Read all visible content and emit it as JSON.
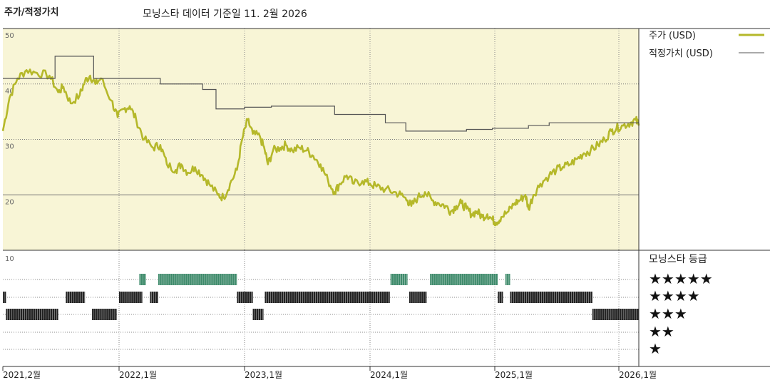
{
  "chart_data": {
    "type": "line",
    "title": "주가/적정가치",
    "subtitle": "모닝스타 데이터 기준일 11. 2월 2026",
    "x_tick_labels": [
      "2021,2월",
      "2022,1월",
      "2023,1월",
      "2024,1월",
      "2025,1월",
      "2026,1월"
    ],
    "x_ticks": [
      "2021-02",
      "2022-01",
      "2023-01",
      "2024-01",
      "2025-01",
      "2026-01"
    ],
    "x_range": [
      "2021-02",
      "2026-02"
    ],
    "price_panel": {
      "ylim": [
        10,
        50
      ],
      "y_tick_labels": [
        "50",
        "40",
        "30",
        "20"
      ],
      "grid": true,
      "legend": "right",
      "series": [
        {
          "name": "주가 (USD)",
          "color": "#b5b82a",
          "points": [
            [
              "2021-02-01",
              31.5
            ],
            [
              "2021-02-20",
              37.5
            ],
            [
              "2021-03-15",
              41.0
            ],
            [
              "2021-04-10",
              42.5
            ],
            [
              "2021-05-10",
              42.0
            ],
            [
              "2021-06-15",
              41.5
            ],
            [
              "2021-07-10",
              38.5
            ],
            [
              "2021-07-25",
              39.5
            ],
            [
              "2021-08-15",
              36.5
            ],
            [
              "2021-09-10",
              38.0
            ],
            [
              "2021-09-25",
              40.5
            ],
            [
              "2021-10-10",
              41.5
            ],
            [
              "2021-10-25",
              40.0
            ],
            [
              "2021-11-10",
              41.0
            ],
            [
              "2021-12-10",
              37.0
            ],
            [
              "2021-12-28",
              34.0
            ],
            [
              "2022-01-15",
              35.5
            ],
            [
              "2022-02-01",
              36.0
            ],
            [
              "2022-02-20",
              33.5
            ],
            [
              "2022-03-15",
              30.0
            ],
            [
              "2022-04-10",
              28.5
            ],
            [
              "2022-05-01",
              29.0
            ],
            [
              "2022-05-20",
              25.5
            ],
            [
              "2022-06-15",
              24.5
            ],
            [
              "2022-07-01",
              25.5
            ],
            [
              "2022-07-20",
              24.0
            ],
            [
              "2022-08-10",
              25.0
            ],
            [
              "2022-09-01",
              23.5
            ],
            [
              "2022-09-20",
              22.0
            ],
            [
              "2022-10-15",
              20.0
            ],
            [
              "2022-11-01",
              19.5
            ],
            [
              "2022-11-20",
              22.0
            ],
            [
              "2022-12-10",
              24.5
            ],
            [
              "2022-12-25",
              30.0
            ],
            [
              "2023-01-10",
              33.5
            ],
            [
              "2023-01-25",
              31.0
            ],
            [
              "2023-02-15",
              30.5
            ],
            [
              "2023-03-01",
              28.0
            ],
            [
              "2023-03-10",
              25.5
            ],
            [
              "2023-03-25",
              28.0
            ],
            [
              "2023-04-15",
              28.5
            ],
            [
              "2023-05-01",
              29.0
            ],
            [
              "2023-05-20",
              28.0
            ],
            [
              "2023-06-10",
              28.5
            ],
            [
              "2023-07-01",
              28.0
            ],
            [
              "2023-07-20",
              27.0
            ],
            [
              "2023-08-10",
              25.5
            ],
            [
              "2023-09-01",
              22.5
            ],
            [
              "2023-09-20",
              20.5
            ],
            [
              "2023-10-05",
              22.0
            ],
            [
              "2023-10-25",
              23.5
            ],
            [
              "2023-11-15",
              22.0
            ],
            [
              "2023-12-10",
              22.5
            ],
            [
              "2024-01-01",
              22.0
            ],
            [
              "2024-01-20",
              21.5
            ],
            [
              "2024-02-15",
              21.0
            ],
            [
              "2024-03-10",
              20.5
            ],
            [
              "2024-04-01",
              20.0
            ],
            [
              "2024-04-20",
              19.0
            ],
            [
              "2024-05-01",
              18.0
            ],
            [
              "2024-05-20",
              19.5
            ],
            [
              "2024-06-10",
              20.5
            ],
            [
              "2024-07-01",
              19.0
            ],
            [
              "2024-07-20",
              18.5
            ],
            [
              "2024-08-10",
              18.0
            ],
            [
              "2024-08-25",
              17.0
            ],
            [
              "2024-09-10",
              18.0
            ],
            [
              "2024-09-25",
              18.5
            ],
            [
              "2024-10-10",
              17.5
            ],
            [
              "2024-10-25",
              16.5
            ],
            [
              "2024-11-10",
              17.0
            ],
            [
              "2024-11-25",
              16.0
            ],
            [
              "2024-12-10",
              16.5
            ],
            [
              "2024-12-25",
              15.5
            ],
            [
              "2025-01-05",
              15.0
            ],
            [
              "2025-01-20",
              16.0
            ],
            [
              "2025-02-10",
              17.0
            ],
            [
              "2025-03-01",
              18.5
            ],
            [
              "2025-03-15",
              19.0
            ],
            [
              "2025-04-01",
              20.0
            ],
            [
              "2025-04-10",
              17.5
            ],
            [
              "2025-04-25",
              20.0
            ],
            [
              "2025-05-15",
              22.0
            ],
            [
              "2025-06-10",
              23.5
            ],
            [
              "2025-07-01",
              24.5
            ],
            [
              "2025-07-20",
              25.0
            ],
            [
              "2025-08-10",
              25.5
            ],
            [
              "2025-09-01",
              26.5
            ],
            [
              "2025-09-20",
              27.5
            ],
            [
              "2025-10-10",
              28.0
            ],
            [
              "2025-11-01",
              29.0
            ],
            [
              "2025-11-20",
              30.0
            ],
            [
              "2025-12-10",
              31.5
            ],
            [
              "2025-12-25",
              32.0
            ],
            [
              "2026-01-10",
              32.5
            ],
            [
              "2026-01-25",
              33.0
            ],
            [
              "2026-02-05",
              33.5
            ],
            [
              "2026-02-11",
              32.5
            ]
          ]
        },
        {
          "name": "적정가치 (USD)",
          "color": "#555555",
          "step": true,
          "points": [
            [
              "2021-02-01",
              41.0
            ],
            [
              "2021-07-01",
              45.0
            ],
            [
              "2021-10-20",
              41.0
            ],
            [
              "2022-05-01",
              40.0
            ],
            [
              "2022-09-01",
              39.0
            ],
            [
              "2022-10-10",
              35.5
            ],
            [
              "2023-01-01",
              35.8
            ],
            [
              "2023-03-20",
              36.0
            ],
            [
              "2023-09-20",
              34.5
            ],
            [
              "2024-02-15",
              33.0
            ],
            [
              "2024-04-15",
              31.5
            ],
            [
              "2024-10-10",
              31.8
            ],
            [
              "2024-12-25",
              32.0
            ],
            [
              "2025-04-10",
              32.5
            ],
            [
              "2025-06-10",
              33.0
            ],
            [
              "2026-02-11",
              33.0
            ]
          ]
        }
      ]
    },
    "rating_panel": {
      "label": "모닝스타 등급",
      "y_tick_labels": [
        "10"
      ],
      "levels": [
        "★★★★★",
        "★★★★",
        "★★★",
        "★★",
        "★"
      ],
      "level_colors": {
        "5": "#3d8a6a",
        "4": "#222222",
        "3": "#222222"
      },
      "periods": [
        [
          "2021-02-01",
          "2021-02-10",
          4
        ],
        [
          "2021-02-10",
          "2021-07-10",
          3
        ],
        [
          "2021-08-01",
          "2021-09-25",
          4
        ],
        [
          "2021-10-15",
          "2021-12-25",
          3
        ],
        [
          "2022-01-01",
          "2022-03-10",
          4
        ],
        [
          "2022-03-01",
          "2022-03-20",
          5
        ],
        [
          "2022-04-01",
          "2022-04-25",
          4
        ],
        [
          "2022-04-25",
          "2022-12-10",
          5
        ],
        [
          "2022-12-10",
          "2023-01-25",
          4
        ],
        [
          "2023-01-25",
          "2023-02-25",
          3
        ],
        [
          "2023-03-01",
          "2024-02-28",
          4
        ],
        [
          "2024-03-01",
          "2024-04-20",
          5
        ],
        [
          "2024-04-25",
          "2024-06-15",
          4
        ],
        [
          "2024-06-25",
          "2025-01-10",
          5
        ],
        [
          "2025-01-10",
          "2025-01-25",
          4
        ],
        [
          "2025-02-01",
          "2025-02-15",
          5
        ],
        [
          "2025-02-15",
          "2025-10-15",
          4
        ],
        [
          "2025-10-15",
          "2026-02-11",
          3
        ]
      ]
    }
  }
}
